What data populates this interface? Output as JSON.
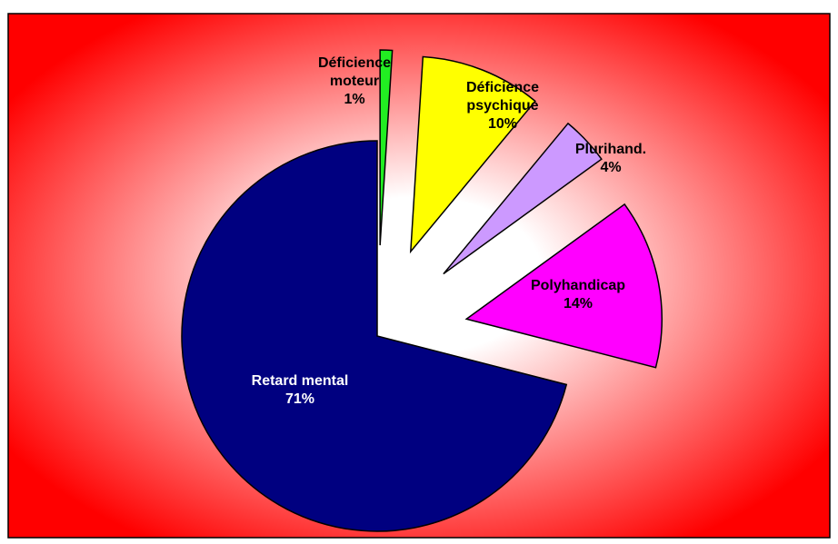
{
  "chart_data": {
    "type": "pie",
    "categories": [
      "Déficience moteur",
      "Déficience psychique",
      "Plurihand.",
      "Polyhandicap",
      "Retard mental"
    ],
    "values": [
      1,
      10,
      4,
      14,
      71
    ],
    "value_labels": [
      "1%",
      "10%",
      "4%",
      "14%",
      "71%"
    ],
    "colors": [
      "#22ee22",
      "#ffff00",
      "#cc99ff",
      "#ff00ff",
      "#000080"
    ],
    "label_colors": [
      "#000000",
      "#000000",
      "#000000",
      "#000000",
      "#ffffff"
    ],
    "explode": [
      true,
      true,
      true,
      true,
      false
    ]
  }
}
